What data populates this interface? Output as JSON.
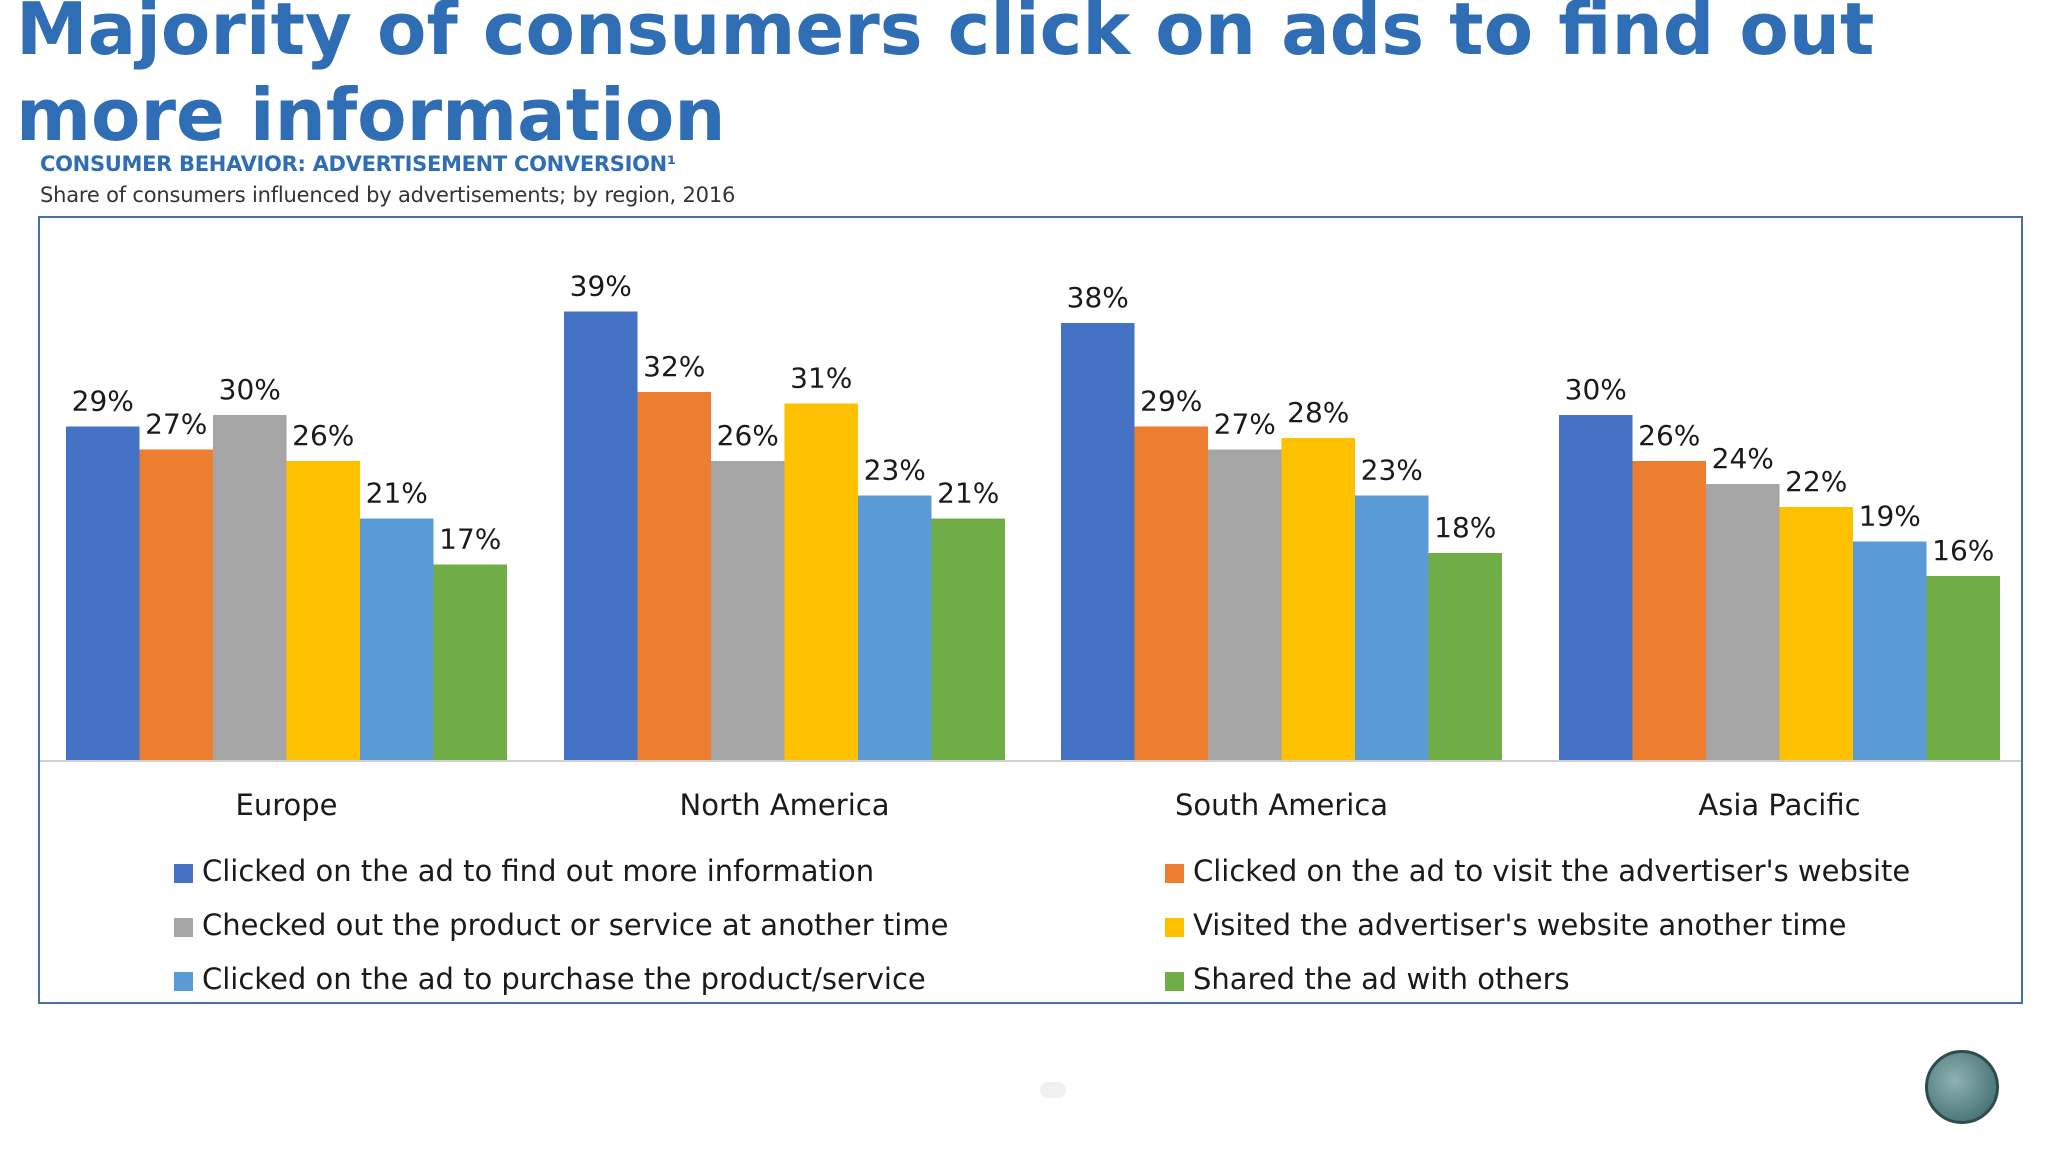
{
  "slide": {
    "title_line1": "Majority of consumers click on ads to find out",
    "title_line2": "more information",
    "subtitle": "CONSUMER BEHAVIOR: ADVERTISEMENT CONVERSION¹",
    "subtitle2": "Share of consumers influenced by advertisements; by region, 2016"
  },
  "chart_data": {
    "type": "bar",
    "title": "CONSUMER BEHAVIOR: ADVERTISEMENT CONVERSION¹",
    "subtitle": "Share of consumers influenced by advertisements; by region, 2016",
    "xlabel": "",
    "ylabel": "",
    "ylim": [
      0,
      40
    ],
    "grid": false,
    "legend_position": "bottom",
    "categories": [
      "Europe",
      "North America",
      "South America",
      "Asia Pacific"
    ],
    "series": [
      {
        "name": "Clicked on the ad to find out more information",
        "color": "#4472C4",
        "values": [
          29,
          39,
          38,
          30
        ],
        "labels": [
          "29%",
          "39%",
          "38%",
          "30%"
        ]
      },
      {
        "name": "Clicked on the ad to visit the advertiser's website",
        "color": "#ED7D31",
        "values": [
          27,
          32,
          29,
          26
        ],
        "labels": [
          "27%",
          "32%",
          "29%",
          "26%"
        ]
      },
      {
        "name": "Checked out the product or service at another time",
        "color": "#A5A5A5",
        "values": [
          30,
          26,
          27,
          24
        ],
        "labels": [
          "30%",
          "26%",
          "27%",
          "24%"
        ]
      },
      {
        "name": "Visited the advertiser's website another time",
        "color": "#FFC000",
        "values": [
          26,
          31,
          28,
          22
        ],
        "labels": [
          "26%",
          "31%",
          "28%",
          "22%"
        ]
      },
      {
        "name": "Clicked on the ad to purchase the product/service",
        "color": "#5B9BD5",
        "values": [
          21,
          23,
          23,
          19
        ],
        "labels": [
          "21%",
          "23%",
          "23%",
          "19%"
        ]
      },
      {
        "name": "Shared the ad with others",
        "color": "#70AD47",
        "values": [
          17,
          21,
          18,
          16
        ],
        "labels": [
          "17%",
          "21%",
          "18%",
          "16%"
        ]
      }
    ]
  }
}
